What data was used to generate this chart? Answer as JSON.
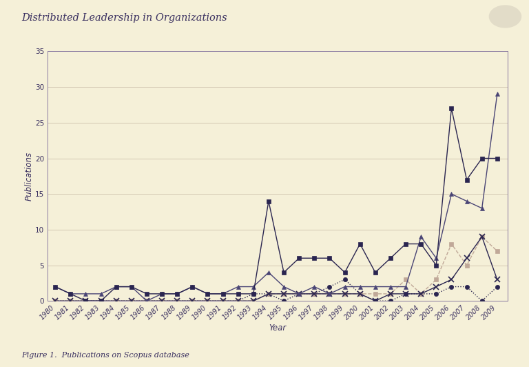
{
  "title": "Distributed Leadership in Organizations",
  "xlabel": "Year",
  "ylabel": "Publications",
  "figure_caption": "Figure 1.  Publications on Scopus database",
  "background_color": "#f5f0d8",
  "plot_bg_color": "#f5f0d8",
  "years": [
    1980,
    1981,
    1982,
    1983,
    1984,
    1985,
    1986,
    1987,
    1988,
    1989,
    1990,
    1991,
    1992,
    1993,
    1994,
    1995,
    1996,
    1997,
    1998,
    1999,
    2000,
    2001,
    2002,
    2003,
    2004,
    2005,
    2006,
    2007,
    2008,
    2009
  ],
  "distributed_leadership": [
    2,
    1,
    1,
    1,
    2,
    2,
    0,
    1,
    1,
    2,
    1,
    1,
    2,
    2,
    4,
    2,
    1,
    2,
    1,
    2,
    2,
    2,
    2,
    2,
    9,
    6,
    15,
    14,
    13,
    29
  ],
  "shared_leadership": [
    2,
    1,
    0,
    0,
    2,
    2,
    1,
    1,
    1,
    2,
    1,
    1,
    1,
    1,
    14,
    4,
    6,
    6,
    6,
    4,
    8,
    4,
    6,
    8,
    8,
    5,
    27,
    17,
    20,
    20
  ],
  "collective_leadership": [
    0,
    0,
    0,
    0,
    0,
    0,
    0,
    0,
    0,
    0,
    0,
    0,
    0,
    1,
    1,
    0,
    1,
    1,
    2,
    3,
    1,
    0,
    0,
    1,
    1,
    1,
    2,
    2,
    0,
    2
  ],
  "collaborative_leadership": [
    0,
    0,
    0,
    0,
    0,
    0,
    0,
    0,
    0,
    0,
    0,
    0,
    0,
    0,
    1,
    1,
    1,
    1,
    1,
    1,
    1,
    1,
    1,
    3,
    1,
    3,
    8,
    5,
    9,
    7
  ],
  "emergent_leadership": [
    0,
    0,
    0,
    0,
    0,
    0,
    0,
    0,
    0,
    0,
    0,
    0,
    0,
    0,
    1,
    1,
    1,
    1,
    1,
    1,
    1,
    0,
    1,
    1,
    1,
    2,
    3,
    6,
    9,
    3
  ],
  "color_main": "#4a4575",
  "color_shared": "#2a2550",
  "color_collective": "#2a2550",
  "color_collaborative": "#c0a898",
  "color_emergent": "#4a4575",
  "ylim": [
    0,
    35
  ],
  "yticks": [
    0,
    5,
    10,
    15,
    20,
    25,
    30,
    35
  ]
}
